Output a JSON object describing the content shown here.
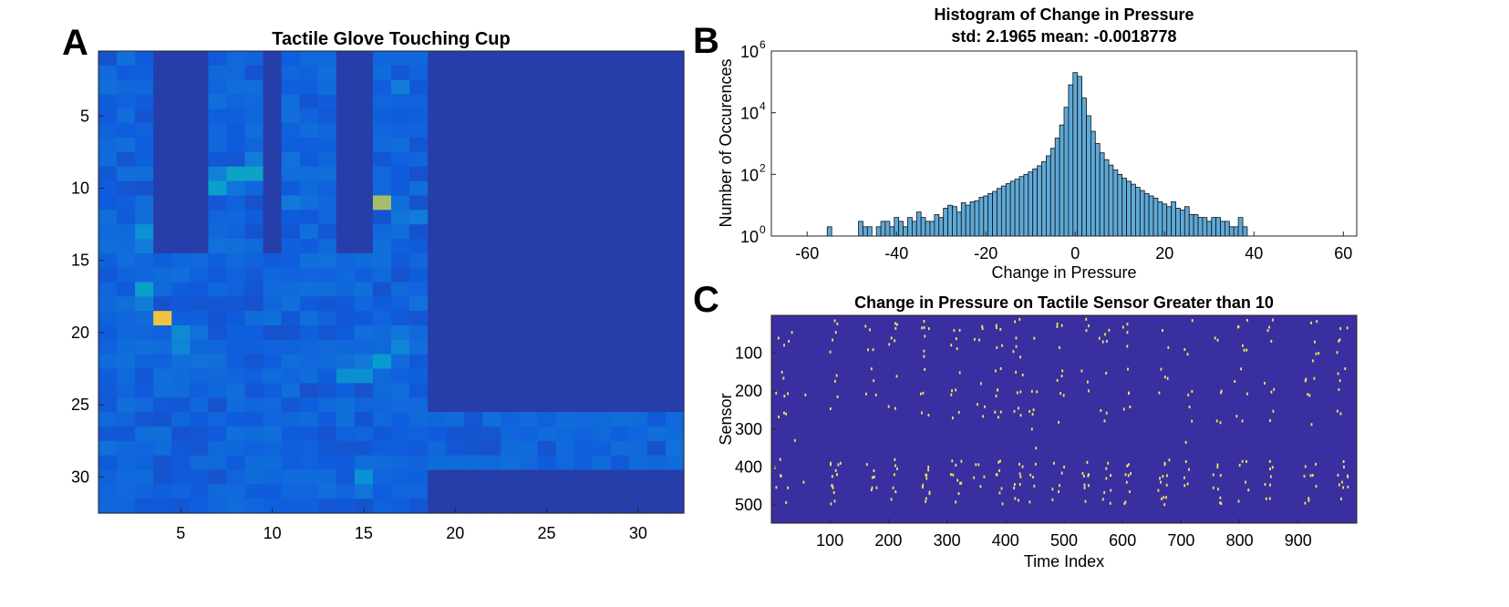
{
  "panel_letters": [
    "A",
    "B",
    "C"
  ],
  "colors": {
    "background": "#3a2fa0",
    "axis": "#262626",
    "bar_fill": "#5ea9d8",
    "bar_edge": "#111111",
    "event": "#f3e85a",
    "text": "#000000"
  },
  "chart_data": [
    {
      "panel": "A",
      "type": "heatmap",
      "title": "Tactile Glove Touching Cup",
      "xlabel": "",
      "ylabel": "",
      "xlim": [
        0.5,
        32.5
      ],
      "ylim": [
        0.5,
        32.5
      ],
      "xticks": [
        5,
        10,
        15,
        20,
        25,
        30
      ],
      "yticks": [
        5,
        10,
        15,
        20,
        25,
        30
      ],
      "grid": false,
      "colormap": "parula",
      "value_range": [
        0,
        1
      ],
      "base_value": 0.06,
      "inactive_regions": [
        {
          "cols": [
            4,
            6
          ],
          "rows": [
            1,
            14
          ]
        },
        {
          "cols": [
            10,
            10
          ],
          "rows": [
            1,
            14
          ]
        },
        {
          "cols": [
            14,
            15
          ],
          "rows": [
            1,
            14
          ]
        },
        {
          "cols": [
            19,
            32
          ],
          "rows": [
            1,
            25
          ]
        },
        {
          "cols": [
            19,
            32
          ],
          "rows": [
            30,
            32
          ]
        }
      ],
      "hotspots": [
        {
          "row": 19,
          "col": 4,
          "value": 0.93
        },
        {
          "row": 11,
          "col": 16,
          "value": 0.82
        },
        {
          "row": 9,
          "col": 8,
          "value": 0.5
        },
        {
          "row": 9,
          "col": 9,
          "value": 0.5
        },
        {
          "row": 10,
          "col": 7,
          "value": 0.48
        },
        {
          "row": 17,
          "col": 3,
          "value": 0.48
        },
        {
          "row": 22,
          "col": 16,
          "value": 0.45
        },
        {
          "row": 30,
          "col": 15,
          "value": 0.4
        },
        {
          "row": 13,
          "col": 3,
          "value": 0.4
        },
        {
          "row": 23,
          "col": 14,
          "value": 0.38
        },
        {
          "row": 23,
          "col": 15,
          "value": 0.38
        },
        {
          "row": 20,
          "col": 5,
          "value": 0.36
        },
        {
          "row": 21,
          "col": 5,
          "value": 0.34
        },
        {
          "row": 21,
          "col": 17,
          "value": 0.34
        },
        {
          "row": 9,
          "col": 7,
          "value": 0.32
        },
        {
          "row": 12,
          "col": 18,
          "value": 0.3
        },
        {
          "row": 8,
          "col": 9,
          "value": 0.3
        },
        {
          "row": 14,
          "col": 3,
          "value": 0.3
        },
        {
          "row": 18,
          "col": 3,
          "value": 0.3
        },
        {
          "row": 22,
          "col": 15,
          "value": 0.28
        },
        {
          "row": 31,
          "col": 15,
          "value": 0.26
        },
        {
          "row": 20,
          "col": 17,
          "value": 0.26
        },
        {
          "row": 12,
          "col": 17,
          "value": 0.26
        },
        {
          "row": 22,
          "col": 6,
          "value": 0.24
        },
        {
          "row": 3,
          "col": 17,
          "value": 0.3
        },
        {
          "row": 11,
          "col": 11,
          "value": 0.28
        },
        {
          "row": 10,
          "col": 8,
          "value": 0.26
        }
      ]
    },
    {
      "panel": "B",
      "type": "bar",
      "title": "Histogram of Change in Pressure",
      "subtitle": "std: 2.1965 mean: -0.0018778",
      "xlabel": "Change in Pressure",
      "ylabel": "Number of Occurences",
      "xlim": [
        -68,
        63
      ],
      "ylim": [
        1,
        1000000
      ],
      "yscale": "log",
      "xticks": [
        -60,
        -40,
        -20,
        0,
        20,
        40,
        60
      ],
      "yticks": [
        1,
        100,
        10000,
        1000000
      ],
      "ytick_labels": [
        [
          "10",
          "0"
        ],
        [
          "10",
          "2"
        ],
        [
          "10",
          "4"
        ],
        [
          "10",
          "6"
        ]
      ],
      "grid": false,
      "bin_width": 1,
      "bins": [
        {
          "x": -55,
          "count": 2
        },
        {
          "x": -48,
          "count": 3
        },
        {
          "x": -47,
          "count": 2
        },
        {
          "x": -46,
          "count": 2
        },
        {
          "x": -44,
          "count": 2
        },
        {
          "x": -43,
          "count": 3
        },
        {
          "x": -42,
          "count": 3
        },
        {
          "x": -41,
          "count": 2
        },
        {
          "x": -40,
          "count": 4
        },
        {
          "x": -39,
          "count": 3
        },
        {
          "x": -38,
          "count": 2
        },
        {
          "x": -37,
          "count": 4
        },
        {
          "x": -36,
          "count": 3
        },
        {
          "x": -35,
          "count": 6
        },
        {
          "x": -34,
          "count": 4
        },
        {
          "x": -33,
          "count": 3
        },
        {
          "x": -32,
          "count": 3
        },
        {
          "x": -31,
          "count": 5
        },
        {
          "x": -30,
          "count": 4
        },
        {
          "x": -29,
          "count": 8
        },
        {
          "x": -28,
          "count": 10
        },
        {
          "x": -27,
          "count": 9
        },
        {
          "x": -26,
          "count": 6
        },
        {
          "x": -25,
          "count": 12
        },
        {
          "x": -24,
          "count": 10
        },
        {
          "x": -23,
          "count": 13
        },
        {
          "x": -22,
          "count": 14
        },
        {
          "x": -21,
          "count": 18
        },
        {
          "x": -20,
          "count": 20
        },
        {
          "x": -19,
          "count": 24
        },
        {
          "x": -18,
          "count": 28
        },
        {
          "x": -17,
          "count": 35
        },
        {
          "x": -16,
          "count": 42
        },
        {
          "x": -15,
          "count": 50
        },
        {
          "x": -14,
          "count": 60
        },
        {
          "x": -13,
          "count": 70
        },
        {
          "x": -12,
          "count": 85
        },
        {
          "x": -11,
          "count": 100
        },
        {
          "x": -10,
          "count": 120
        },
        {
          "x": -9,
          "count": 150
        },
        {
          "x": -8,
          "count": 190
        },
        {
          "x": -7,
          "count": 260
        },
        {
          "x": -6,
          "count": 400
        },
        {
          "x": -5,
          "count": 700
        },
        {
          "x": -4,
          "count": 1500
        },
        {
          "x": -3,
          "count": 4000
        },
        {
          "x": -2,
          "count": 15000
        },
        {
          "x": -1,
          "count": 80000
        },
        {
          "x": 0,
          "count": 200000
        },
        {
          "x": 1,
          "count": 150000
        },
        {
          "x": 2,
          "count": 30000
        },
        {
          "x": 3,
          "count": 8000
        },
        {
          "x": 4,
          "count": 2500
        },
        {
          "x": 5,
          "count": 1000
        },
        {
          "x": 6,
          "count": 500
        },
        {
          "x": 7,
          "count": 300
        },
        {
          "x": 8,
          "count": 200
        },
        {
          "x": 9,
          "count": 140
        },
        {
          "x": 10,
          "count": 100
        },
        {
          "x": 11,
          "count": 75
        },
        {
          "x": 12,
          "count": 60
        },
        {
          "x": 13,
          "count": 48
        },
        {
          "x": 14,
          "count": 38
        },
        {
          "x": 15,
          "count": 30
        },
        {
          "x": 16,
          "count": 24
        },
        {
          "x": 17,
          "count": 20
        },
        {
          "x": 18,
          "count": 17
        },
        {
          "x": 19,
          "count": 13
        },
        {
          "x": 20,
          "count": 11
        },
        {
          "x": 21,
          "count": 9
        },
        {
          "x": 22,
          "count": 13
        },
        {
          "x": 23,
          "count": 8
        },
        {
          "x": 24,
          "count": 7
        },
        {
          "x": 25,
          "count": 9
        },
        {
          "x": 26,
          "count": 5
        },
        {
          "x": 27,
          "count": 5
        },
        {
          "x": 28,
          "count": 4
        },
        {
          "x": 29,
          "count": 4
        },
        {
          "x": 30,
          "count": 3
        },
        {
          "x": 31,
          "count": 4
        },
        {
          "x": 32,
          "count": 4
        },
        {
          "x": 33,
          "count": 3
        },
        {
          "x": 34,
          "count": 3
        },
        {
          "x": 35,
          "count": 2
        },
        {
          "x": 36,
          "count": 2
        },
        {
          "x": 37,
          "count": 4
        },
        {
          "x": 38,
          "count": 2
        }
      ]
    },
    {
      "panel": "C",
      "type": "scatter",
      "title": "Change in Pressure on Tactile Sensor Greater than 10",
      "xlabel": "Time Index",
      "ylabel": "Sensor",
      "xlim": [
        0,
        1000
      ],
      "ylim": [
        0,
        548
      ],
      "y_reversed": true,
      "xticks": [
        100,
        200,
        300,
        400,
        500,
        600,
        700,
        800,
        900
      ],
      "yticks": [
        100,
        200,
        300,
        400,
        500
      ],
      "grid": false,
      "event_rows": [
        [
          10,
          40
        ],
        [
          60,
          110
        ],
        [
          140,
          180
        ],
        [
          195,
          215
        ],
        [
          240,
          290
        ],
        [
          380,
          410
        ],
        [
          415,
          430
        ],
        [
          440,
          470
        ],
        [
          480,
          500
        ]
      ],
      "event_columns": [
        [
          5,
          30
        ],
        [
          100,
          115
        ],
        [
          160,
          180
        ],
        [
          200,
          215
        ],
        [
          255,
          275
        ],
        [
          305,
          325
        ],
        [
          345,
          365
        ],
        [
          380,
          395
        ],
        [
          410,
          430
        ],
        [
          440,
          455
        ],
        [
          480,
          500
        ],
        [
          530,
          545
        ],
        [
          560,
          580
        ],
        [
          600,
          615
        ],
        [
          660,
          680
        ],
        [
          700,
          720
        ],
        [
          750,
          770
        ],
        [
          790,
          815
        ],
        [
          840,
          860
        ],
        [
          910,
          935
        ],
        [
          965,
          985
        ]
      ],
      "points": [
        [
          12,
          60
        ],
        [
          35,
          45
        ],
        [
          18,
          150
        ],
        [
          8,
          205
        ],
        [
          25,
          260
        ],
        [
          40,
          330
        ],
        [
          15,
          380
        ],
        [
          28,
          455
        ],
        [
          55,
          440
        ],
        [
          58,
          210
        ],
        [
          110,
          45
        ],
        [
          112,
          420
        ],
        [
          105,
          455
        ],
        [
          108,
          490
        ],
        [
          118,
          390
        ],
        [
          168,
          38
        ],
        [
          175,
          410
        ],
        [
          172,
          455
        ],
        [
          205,
          60
        ],
        [
          210,
          420
        ],
        [
          208,
          455
        ],
        [
          262,
          55
        ],
        [
          268,
          400
        ],
        [
          265,
          430
        ],
        [
          270,
          470
        ],
        [
          312,
          40
        ],
        [
          315,
          395
        ],
        [
          318,
          435
        ],
        [
          320,
          470
        ],
        [
          355,
          65
        ],
        [
          358,
          180
        ],
        [
          352,
          235
        ],
        [
          385,
          85
        ],
        [
          392,
          255
        ],
        [
          418,
          60
        ],
        [
          425,
          110
        ],
        [
          422,
          245
        ],
        [
          445,
          300
        ],
        [
          452,
          350
        ],
        [
          488,
          30
        ],
        [
          492,
          85
        ],
        [
          496,
          160
        ],
        [
          500,
          400
        ],
        [
          538,
          40
        ],
        [
          542,
          420
        ],
        [
          535,
          455
        ],
        [
          570,
          50
        ],
        [
          575,
          390
        ],
        [
          572,
          430
        ],
        [
          608,
          45
        ],
        [
          605,
          420
        ],
        [
          612,
          465
        ],
        [
          668,
          40
        ],
        [
          672,
          390
        ],
        [
          665,
          440
        ],
        [
          670,
          480
        ],
        [
          706,
          90
        ],
        [
          712,
          210
        ],
        [
          708,
          335
        ],
        [
          758,
          60
        ],
        [
          762,
          400
        ],
        [
          755,
          455
        ],
        [
          798,
          30
        ],
        [
          805,
          80
        ],
        [
          800,
          395
        ],
        [
          810,
          440
        ],
        [
          848,
          40
        ],
        [
          852,
          405
        ],
        [
          922,
          20
        ],
        [
          928,
          70
        ],
        [
          925,
          120
        ],
        [
          972,
          35
        ],
        [
          978,
          400
        ],
        [
          975,
          440
        ]
      ]
    }
  ]
}
